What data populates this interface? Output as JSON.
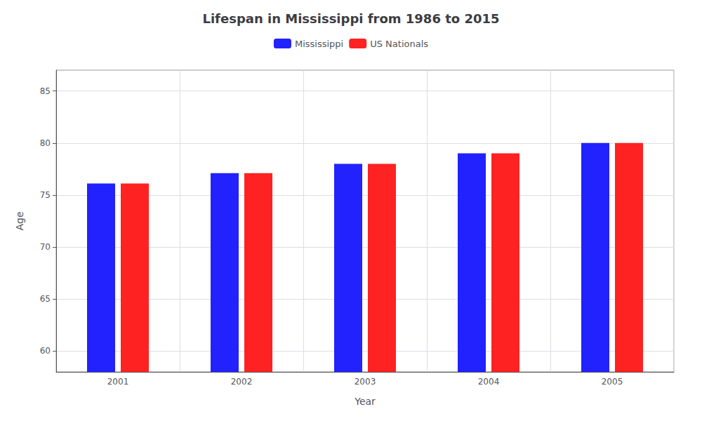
{
  "chart_data": {
    "type": "bar",
    "title": "Lifespan in Mississippi from 1986 to 2015",
    "xlabel": "Year",
    "ylabel": "Age",
    "categories": [
      "2001",
      "2002",
      "2003",
      "2004",
      "2005"
    ],
    "series": [
      {
        "name": "Mississippi",
        "color": "#2222ff",
        "values": [
          76.1,
          77.1,
          78.0,
          79.0,
          80.0
        ]
      },
      {
        "name": "US Nationals",
        "color": "#ff2222",
        "values": [
          76.1,
          77.1,
          78.0,
          79.0,
          80.0
        ]
      }
    ],
    "ylim": [
      58,
      87
    ],
    "yticks": [
      60,
      65,
      70,
      75,
      80,
      85
    ],
    "grid": true,
    "legend": "top"
  }
}
